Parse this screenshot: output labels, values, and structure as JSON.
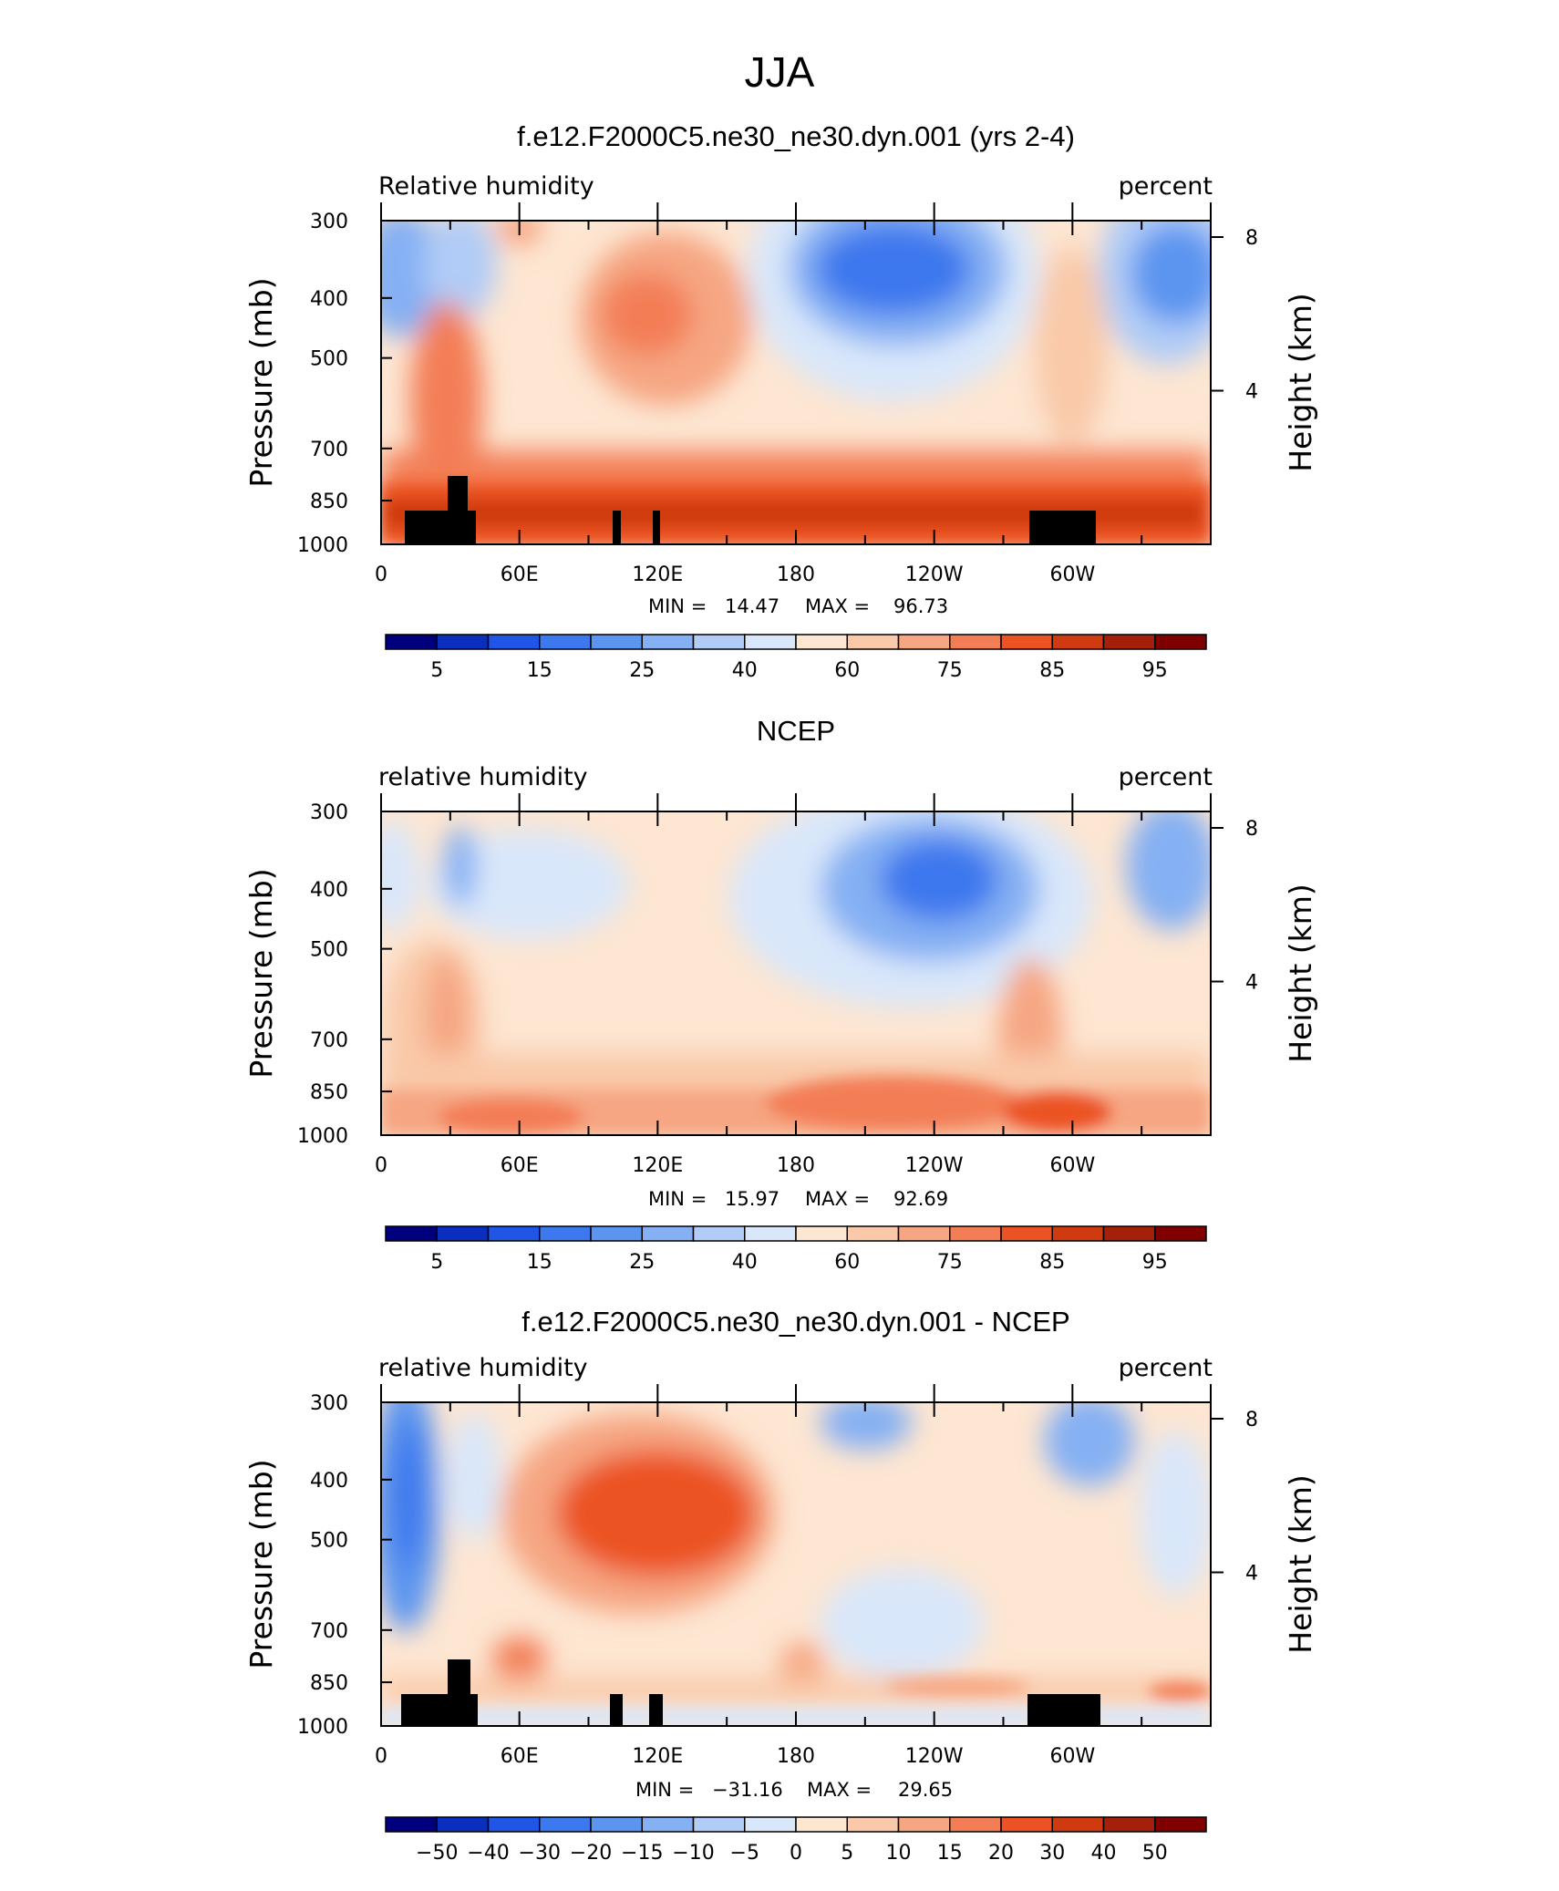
{
  "season": "JJA",
  "panels": [
    {
      "id": "model",
      "title": "f.e12.F2000C5.ne30_ne30.dyn.001 (yrs 2-4)",
      "left_label": "Relative humidity",
      "right_label": "percent",
      "min_label": "MIN =",
      "min_value": "14.47",
      "max_label": "MAX =",
      "max_value": "96.73",
      "colorbar_labels": [
        "5",
        "15",
        "25",
        "40",
        "60",
        "75",
        "85",
        "95"
      ]
    },
    {
      "id": "obs",
      "title": "NCEP",
      "left_label": "relative humidity",
      "right_label": "percent",
      "min_label": "MIN =",
      "min_value": "15.97",
      "max_label": "MAX =",
      "max_value": "92.69",
      "colorbar_labels": [
        "5",
        "15",
        "25",
        "40",
        "60",
        "75",
        "85",
        "95"
      ]
    },
    {
      "id": "diff",
      "title": "f.e12.F2000C5.ne30_ne30.dyn.001 - NCEP",
      "left_label": "relative humidity",
      "right_label": "percent",
      "min_label": "MIN =",
      "min_value": "−31.16",
      "max_label": "MAX =",
      "max_value": "29.65",
      "colorbar_labels": [
        "−50",
        "−40",
        "−30",
        "−20",
        "−15",
        "−10",
        "−5",
        "0",
        "5",
        "10",
        "15",
        "20",
        "30",
        "40",
        "50"
      ]
    }
  ],
  "colors": {
    "palette": [
      "#00007f",
      "#0a2fbf",
      "#1f56e6",
      "#3c78ee",
      "#5c95f0",
      "#85b0f3",
      "#b1ccf6",
      "#d9e7fa",
      "#fde6d2",
      "#f9c9a9",
      "#f6a682",
      "#f37e56",
      "#ec5324",
      "#cf3a10",
      "#a5200b",
      "#800000"
    ],
    "topography": "#000000"
  },
  "chart_data": [
    {
      "type": "heatmap",
      "title": "f.e12.F2000C5.ne30_ne30.dyn.001 (yrs 2-4)",
      "variable": "Relative humidity",
      "units": "percent",
      "ylabel": "Pressure (mb)",
      "y2label": "Height (km)",
      "x_ticks": [
        "0",
        "60E",
        "120E",
        "180",
        "120W",
        "60W"
      ],
      "y_ticks": [
        300,
        400,
        500,
        700,
        850,
        1000
      ],
      "y2_ticks": [
        8,
        4
      ],
      "min": 14.47,
      "max": 96.73,
      "contour_levels": [
        5,
        10,
        15,
        20,
        25,
        30,
        40,
        50,
        60,
        70,
        75,
        80,
        85,
        90,
        95
      ]
    },
    {
      "type": "heatmap",
      "title": "NCEP",
      "variable": "relative humidity",
      "units": "percent",
      "ylabel": "Pressure (mb)",
      "y2label": "Height (km)",
      "x_ticks": [
        "0",
        "60E",
        "120E",
        "180",
        "120W",
        "60W"
      ],
      "y_ticks": [
        300,
        400,
        500,
        700,
        850,
        1000
      ],
      "y2_ticks": [
        8,
        4
      ],
      "min": 15.97,
      "max": 92.69,
      "contour_levels": [
        5,
        10,
        15,
        20,
        25,
        30,
        40,
        50,
        60,
        70,
        75,
        80,
        85,
        90,
        95
      ]
    },
    {
      "type": "heatmap",
      "title": "f.e12.F2000C5.ne30_ne30.dyn.001 - NCEP",
      "variable": "relative humidity",
      "units": "percent",
      "ylabel": "Pressure (mb)",
      "y2label": "Height (km)",
      "x_ticks": [
        "0",
        "60E",
        "120E",
        "180",
        "120W",
        "60W"
      ],
      "y_ticks": [
        300,
        400,
        500,
        700,
        850,
        1000
      ],
      "y2_ticks": [
        8,
        4
      ],
      "min": -31.16,
      "max": 29.65,
      "contour_levels": [
        -50,
        -40,
        -30,
        -20,
        -15,
        -10,
        -5,
        0,
        5,
        10,
        15,
        20,
        30,
        40,
        50
      ]
    }
  ]
}
